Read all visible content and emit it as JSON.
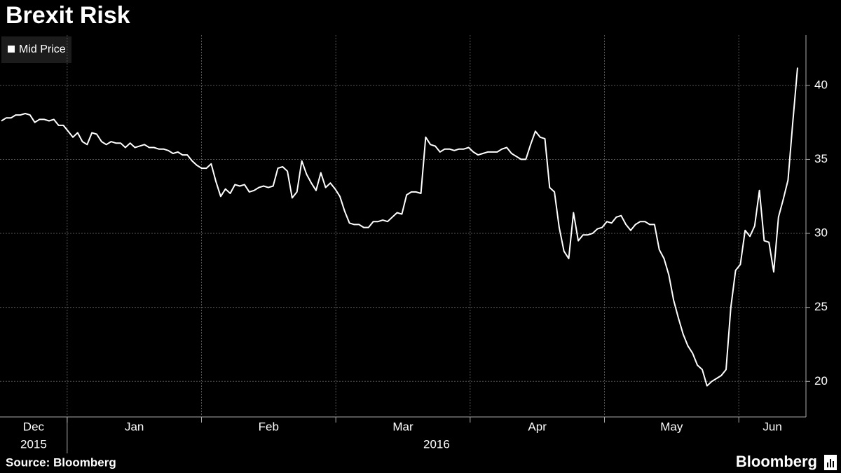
{
  "chart_data": {
    "type": "line",
    "title": "Brexit Risk",
    "source": "Source: Bloomberg",
    "brand": "Bloomberg",
    "months": [
      "Dec",
      "Jan",
      "Feb",
      "Mar",
      "Apr",
      "May",
      "Jun"
    ],
    "years": [
      "2015",
      "2016"
    ],
    "series": [
      {
        "name": "Mid Price",
        "color": "#ffffff",
        "values": [
          37.6,
          37.8,
          37.8,
          38.0,
          38.0,
          38.1,
          38.0,
          37.5,
          37.7,
          37.7,
          37.6,
          37.7,
          37.3,
          37.3,
          36.9,
          36.5,
          36.8,
          36.2,
          36.0,
          36.8,
          36.7,
          36.2,
          36.0,
          36.2,
          36.1,
          36.1,
          35.8,
          36.1,
          35.8,
          35.9,
          36.0,
          35.8,
          35.8,
          35.7,
          35.7,
          35.6,
          35.4,
          35.5,
          35.3,
          35.3,
          34.9,
          34.6,
          34.4,
          34.4,
          34.7,
          33.5,
          32.5,
          33.0,
          32.7,
          33.3,
          33.2,
          33.3,
          32.8,
          32.9,
          33.1,
          33.2,
          33.1,
          33.2,
          34.4,
          34.5,
          34.2,
          32.4,
          32.8,
          34.9,
          34.0,
          33.4,
          32.9,
          34.1,
          33.1,
          33.4,
          33.0,
          32.5,
          31.5,
          30.7,
          30.6,
          30.6,
          30.4,
          30.4,
          30.8,
          30.8,
          30.9,
          30.8,
          31.1,
          31.4,
          31.3,
          32.6,
          32.8,
          32.8,
          32.7,
          36.5,
          36.0,
          35.9,
          35.5,
          35.7,
          35.7,
          35.6,
          35.7,
          35.7,
          35.8,
          35.5,
          35.3,
          35.4,
          35.5,
          35.5,
          35.5,
          35.7,
          35.8,
          35.4,
          35.2,
          35.0,
          35.0,
          36.0,
          36.9,
          36.5,
          36.4,
          33.1,
          32.8,
          30.4,
          28.8,
          28.3,
          31.4,
          29.5,
          29.9,
          29.9,
          30.0,
          30.3,
          30.4,
          30.8,
          30.7,
          31.1,
          31.2,
          30.6,
          30.2,
          30.6,
          30.8,
          30.8,
          30.6,
          30.6,
          28.9,
          28.3,
          27.2,
          25.5,
          24.3,
          23.2,
          22.4,
          21.9,
          21.1,
          20.8,
          19.7,
          20.0,
          20.2,
          20.4,
          20.8,
          25.0,
          27.5,
          27.9,
          30.2,
          29.8,
          30.5,
          32.9,
          29.5,
          29.4,
          27.4,
          31.1,
          32.3,
          33.6,
          37.5,
          41.2
        ]
      }
    ],
    "ylim": [
      17.6,
      43.4
    ],
    "yticks": [
      20,
      25,
      30,
      35,
      40
    ],
    "grid": true
  }
}
